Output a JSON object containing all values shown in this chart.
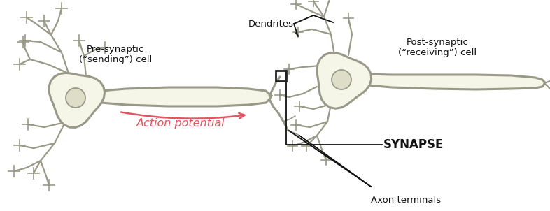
{
  "background_color": "#ffffff",
  "neuron_fill": "#f5f5e8",
  "neuron_edge": "#999988",
  "soma_fill": "#ddddc8",
  "soma_edge": "#999988",
  "text_color": "#111111",
  "ap_color": "#e05560",
  "synapse_edge": "#222222",
  "label_axon_terminals": "Axon terminals",
  "label_synapse": "SYNAPSE",
  "label_presynaptic": "Pre-synaptic\n(“sending”) cell",
  "label_postsynaptic": "Post-synaptic\n(“receiving”) cell",
  "label_dendrites": "Dendrites",
  "label_action_potential": "Action potential",
  "figsize": [
    7.86,
    3.02
  ],
  "dpi": 100
}
